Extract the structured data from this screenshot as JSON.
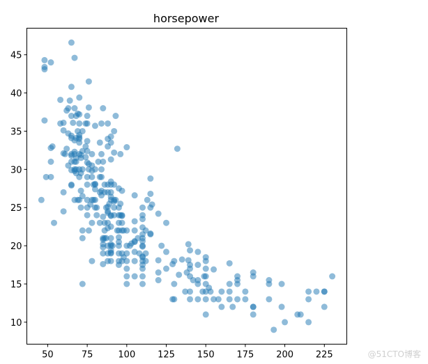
{
  "chart_data": {
    "type": "scatter",
    "title": "horsepower",
    "xlabel": "",
    "ylabel": "",
    "xlim": [
      36.8,
      239.2
    ],
    "ylim": [
      7.12,
      48.48
    ],
    "xticks": [
      50,
      75,
      100,
      125,
      150,
      175,
      200,
      225
    ],
    "yticks": [
      10,
      15,
      20,
      25,
      30,
      35,
      40,
      45
    ],
    "grid": false,
    "color": "#1f77b4",
    "alpha": 0.5,
    "points": [
      [
        130,
        18
      ],
      [
        165,
        15
      ],
      [
        150,
        18
      ],
      [
        150,
        16
      ],
      [
        140,
        17
      ],
      [
        198,
        15
      ],
      [
        220,
        14
      ],
      [
        215,
        14
      ],
      [
        225,
        14
      ],
      [
        190,
        15
      ],
      [
        170,
        15
      ],
      [
        160,
        14
      ],
      [
        150,
        15
      ],
      [
        225,
        14
      ],
      [
        95,
        24
      ],
      [
        95,
        22
      ],
      [
        97,
        18
      ],
      [
        85,
        21
      ],
      [
        88,
        27
      ],
      [
        46,
        26
      ],
      [
        87,
        25
      ],
      [
        90,
        24
      ],
      [
        95,
        25
      ],
      [
        113,
        26
      ],
      [
        90,
        21
      ],
      [
        215,
        10
      ],
      [
        200,
        10
      ],
      [
        210,
        11
      ],
      [
        193,
        9
      ],
      [
        90,
        28
      ],
      [
        100,
        19
      ],
      [
        105,
        16
      ],
      [
        100,
        17
      ],
      [
        88,
        19
      ],
      [
        100,
        18
      ],
      [
        165,
        14
      ],
      [
        175,
        14
      ],
      [
        153,
        14
      ],
      [
        150,
        14
      ],
      [
        180,
        12
      ],
      [
        170,
        13
      ],
      [
        175,
        13
      ],
      [
        110,
        18
      ],
      [
        72,
        22
      ],
      [
        88,
        18
      ],
      [
        86,
        23
      ],
      [
        70,
        30
      ],
      [
        76,
        30
      ],
      [
        65,
        31
      ],
      [
        69,
        35
      ],
      [
        60,
        27
      ],
      [
        70,
        26
      ],
      [
        80,
        25
      ],
      [
        54,
        23
      ],
      [
        90,
        20
      ],
      [
        86,
        21
      ],
      [
        165,
        13
      ],
      [
        150,
        17
      ],
      [
        208,
        11
      ],
      [
        155,
        13
      ],
      [
        160,
        12
      ],
      [
        190,
        13
      ],
      [
        97,
        19
      ],
      [
        130,
        13
      ],
      [
        140,
        13
      ],
      [
        112,
        18
      ],
      [
        76,
        22
      ],
      [
        87,
        21
      ],
      [
        69,
        26
      ],
      [
        86,
        22
      ],
      [
        92,
        28
      ],
      [
        97,
        23
      ],
      [
        80,
        28
      ],
      [
        145,
        13
      ],
      [
        137,
        14
      ],
      [
        198,
        12
      ],
      [
        150,
        13
      ],
      [
        158,
        13
      ],
      [
        215,
        13
      ],
      [
        225,
        12
      ],
      [
        105,
        18
      ],
      [
        100,
        16
      ],
      [
        95,
        23
      ],
      [
        150,
        11
      ],
      [
        167,
        12
      ],
      [
        180,
        12
      ],
      [
        88,
        20
      ],
      [
        72,
        21
      ],
      [
        94,
        22
      ],
      [
        90,
        18
      ],
      [
        85,
        19
      ],
      [
        107,
        21
      ],
      [
        90,
        26
      ],
      [
        145,
        15
      ],
      [
        230,
        16
      ],
      [
        49,
        29
      ],
      [
        75,
        24
      ],
      [
        91,
        20
      ],
      [
        112,
        19
      ],
      [
        110,
        24
      ],
      [
        122,
        20
      ],
      [
        180,
        11
      ],
      [
        95,
        20
      ],
      [
        100,
        15
      ],
      [
        67,
        31
      ],
      [
        80,
        26
      ],
      [
        65,
        32
      ],
      [
        75,
        25
      ],
      [
        110,
        16
      ],
      [
        140,
        16
      ],
      [
        140,
        14
      ],
      [
        83,
        29
      ],
      [
        67,
        26
      ],
      [
        78,
        26
      ],
      [
        52,
        31
      ],
      [
        61,
        32
      ],
      [
        75,
        28
      ],
      [
        75,
        26
      ],
      [
        97,
        24
      ],
      [
        93,
        26
      ],
      [
        95,
        19
      ],
      [
        72,
        15
      ],
      [
        170,
        16
      ],
      [
        148,
        14
      ],
      [
        110,
        17
      ],
      [
        110,
        15
      ],
      [
        95,
        18
      ],
      [
        110,
        21
      ],
      [
        110,
        20
      ],
      [
        129,
        13
      ],
      [
        75,
        29
      ],
      [
        83,
        23
      ],
      [
        100,
        20
      ],
      [
        78,
        23
      ],
      [
        96,
        24
      ],
      [
        71,
        25
      ],
      [
        70,
        29
      ],
      [
        90,
        19
      ],
      [
        88,
        23
      ],
      [
        98,
        22
      ],
      [
        115,
        25
      ],
      [
        53,
        33
      ],
      [
        86,
        28
      ],
      [
        81,
        25
      ],
      [
        92,
        25
      ],
      [
        79,
        26
      ],
      [
        83,
        27
      ],
      [
        140,
        17.5
      ],
      [
        120,
        15.5
      ],
      [
        152,
        14.5
      ],
      [
        100,
        22
      ],
      [
        105,
        22
      ],
      [
        81,
        24
      ],
      [
        90,
        22.5
      ],
      [
        52,
        29
      ],
      [
        60,
        24.5
      ],
      [
        70,
        32
      ],
      [
        78,
        18
      ],
      [
        110,
        18.5
      ],
      [
        95,
        17.5
      ],
      [
        71,
        29.5
      ],
      [
        72,
        26.5
      ],
      [
        102,
        20
      ],
      [
        108,
        19
      ],
      [
        120,
        16.5
      ],
      [
        180,
        16.5
      ],
      [
        68,
        31.5
      ],
      [
        80,
        30
      ],
      [
        58,
        36
      ],
      [
        96,
        25.5
      ],
      [
        70,
        33.5
      ],
      [
        145,
        17.5
      ],
      [
        145,
        15.5
      ],
      [
        130,
        15
      ],
      [
        110,
        17.5
      ],
      [
        105,
        20.5
      ],
      [
        98,
        18.5
      ],
      [
        180,
        16
      ],
      [
        170,
        15.5
      ],
      [
        190,
        15.5
      ],
      [
        149,
        16
      ],
      [
        78,
        29
      ],
      [
        88,
        24.5
      ],
      [
        89,
        25.5
      ],
      [
        63,
        30.5
      ],
      [
        83,
        33.5
      ],
      [
        67,
        30
      ],
      [
        78,
        30.5
      ],
      [
        97,
        22
      ],
      [
        110,
        21.5
      ],
      [
        48,
        43.1
      ],
      [
        66,
        36.1
      ],
      [
        52,
        32.8
      ],
      [
        70,
        39.4
      ],
      [
        60,
        36.1
      ],
      [
        110,
        19.9
      ],
      [
        140,
        19.4
      ],
      [
        139,
        20.2
      ],
      [
        105,
        19.2
      ],
      [
        95,
        20.5
      ],
      [
        85,
        20.2
      ],
      [
        88,
        25.1
      ],
      [
        90,
        19.4
      ],
      [
        105,
        20.6
      ],
      [
        85,
        20.8
      ],
      [
        110,
        18.6
      ],
      [
        120,
        18.1
      ],
      [
        145,
        19.2
      ],
      [
        165,
        17.7
      ],
      [
        139,
        18.1
      ],
      [
        68,
        30
      ],
      [
        95,
        27.5
      ],
      [
        97,
        27.2
      ],
      [
        75,
        30.9
      ],
      [
        95,
        21.1
      ],
      [
        105,
        23.2
      ],
      [
        85,
        23.8
      ],
      [
        97,
        23.9
      ],
      [
        103,
        20.3
      ],
      [
        125,
        17
      ],
      [
        115,
        21.6
      ],
      [
        133,
        16.2
      ],
      [
        71,
        31.5
      ],
      [
        68,
        29.5
      ],
      [
        115,
        21.5
      ],
      [
        85,
        19.8
      ],
      [
        88,
        22.3
      ],
      [
        90,
        20.2
      ],
      [
        110,
        20.6
      ],
      [
        129,
        17.6
      ],
      [
        138,
        16.5
      ],
      [
        135,
        18.2
      ],
      [
        155,
        16.9
      ],
      [
        142,
        15.5
      ],
      [
        125,
        19.2
      ],
      [
        150,
        18.5
      ],
      [
        71,
        31.9
      ],
      [
        65,
        34.1
      ],
      [
        80,
        35.7
      ],
      [
        80,
        27.4
      ],
      [
        77,
        25.4
      ],
      [
        125,
        23
      ],
      [
        71,
        27.2
      ],
      [
        90,
        23.9
      ],
      [
        70,
        34.2
      ],
      [
        70,
        34.5
      ],
      [
        65,
        31.8
      ],
      [
        69,
        37.3
      ],
      [
        90,
        28.4
      ],
      [
        115,
        28.8
      ],
      [
        115,
        26.8
      ],
      [
        90,
        33.5
      ],
      [
        76,
        41.5
      ],
      [
        76,
        38.1
      ],
      [
        60,
        32.1
      ],
      [
        70,
        37.2
      ],
      [
        65,
        28
      ],
      [
        90,
        26.4
      ],
      [
        88,
        24.3
      ],
      [
        90,
        19.1
      ],
      [
        90,
        34.3
      ],
      [
        78,
        29.8
      ],
      [
        90,
        31.3
      ],
      [
        75,
        37
      ],
      [
        92,
        32.2
      ],
      [
        65,
        46.6
      ],
      [
        65,
        27.9
      ],
      [
        65,
        40.8
      ],
      [
        48,
        44.3
      ],
      [
        48,
        43.4
      ],
      [
        48,
        36.4
      ],
      [
        67,
        44.6
      ],
      [
        67,
        33.8
      ],
      [
        67,
        29.8
      ],
      [
        62,
        32.7
      ],
      [
        132,
        32.7
      ],
      [
        100,
        32.9
      ],
      [
        72,
        32.4
      ],
      [
        84,
        27.2
      ],
      [
        84,
        26.6
      ],
      [
        92,
        25.8
      ],
      [
        110,
        23.5
      ],
      [
        84,
        30
      ],
      [
        58,
        39.1
      ],
      [
        64,
        39
      ],
      [
        60,
        35.1
      ],
      [
        67,
        32.3
      ],
      [
        65,
        37
      ],
      [
        62,
        37.7
      ],
      [
        68,
        34.1
      ],
      [
        63,
        34.7
      ],
      [
        65,
        34.4
      ],
      [
        65,
        29.9
      ],
      [
        74,
        33
      ],
      [
        75,
        33.7
      ],
      [
        75,
        32.4
      ],
      [
        74,
        31.6
      ],
      [
        80,
        28.1
      ],
      [
        76,
        30.7
      ],
      [
        116,
        25.4
      ],
      [
        120,
        24.2
      ],
      [
        110,
        22.4
      ],
      [
        105,
        26.6
      ],
      [
        85,
        17.6
      ],
      [
        88,
        28
      ],
      [
        88,
        34
      ],
      [
        85,
        31
      ],
      [
        84,
        29
      ],
      [
        90,
        27
      ],
      [
        92,
        24
      ],
      [
        74,
        36
      ],
      [
        68,
        37
      ],
      [
        68,
        31
      ],
      [
        63,
        38
      ],
      [
        70,
        36
      ],
      [
        88,
        36
      ],
      [
        75,
        36
      ],
      [
        70,
        34
      ],
      [
        67,
        38
      ],
      [
        67,
        32
      ],
      [
        110,
        25
      ],
      [
        85,
        38
      ],
      [
        92,
        26
      ],
      [
        112,
        22
      ],
      [
        96,
        32
      ],
      [
        84,
        36
      ],
      [
        86,
        27
      ],
      [
        52,
        44
      ],
      [
        84,
        32
      ],
      [
        79,
        28
      ],
      [
        82,
        31
      ],
      [
        93,
        37
      ],
      [
        92,
        35
      ],
      [
        88,
        33
      ],
      [
        72,
        35
      ],
      [
        72,
        30
      ],
      [
        78,
        32
      ]
    ]
  },
  "watermark": "@51CTO博客"
}
